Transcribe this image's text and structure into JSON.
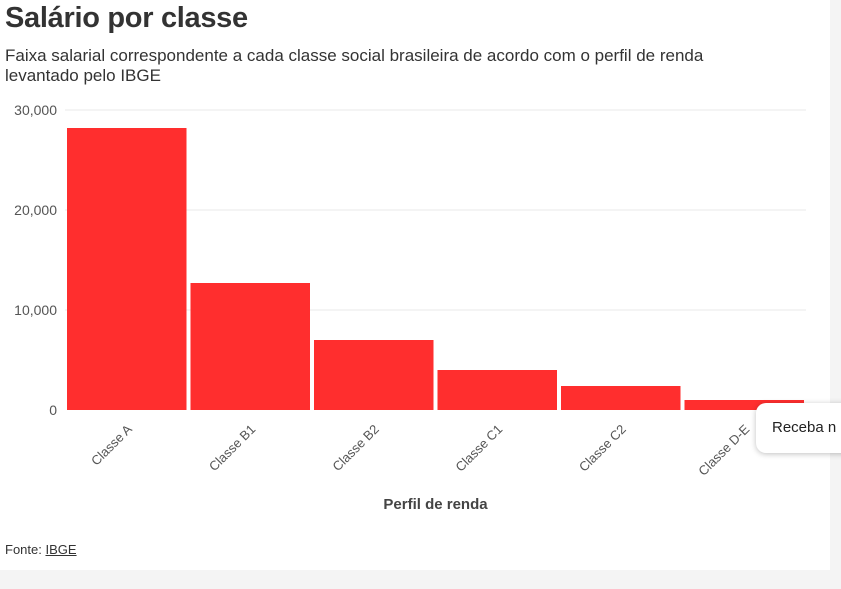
{
  "header": {
    "title": "Salário por classe",
    "subtitle": "Faixa salarial correspondente a cada classe social brasileira de acordo com o perfil de renda levantado pelo IBGE"
  },
  "footer": {
    "source_prefix": "Fonte:",
    "source_link": "IBGE"
  },
  "toast": {
    "text": "Receba n"
  },
  "colors": {
    "bar": "#ff2e2e",
    "grid": "#e8e8e8",
    "card": "#ffffff",
    "page": "#f4f4f4"
  },
  "chart_data": {
    "type": "bar",
    "title": "Salário por classe",
    "subtitle": "Faixa salarial correspondente a cada classe social brasileira de acordo com o perfil de renda levantado pelo IBGE",
    "xlabel": "Perfil de renda",
    "ylabel": "",
    "categories": [
      "Classe A",
      "Classe B1",
      "Classe B2",
      "Classe C1",
      "Classe C2",
      "Classe D-E"
    ],
    "values": [
      28200,
      12700,
      7000,
      4000,
      2400,
      1000
    ],
    "ylim": [
      0,
      30000
    ],
    "yticks": [
      0,
      10000,
      20000,
      30000
    ],
    "ytick_labels": [
      "0",
      "10,000",
      "20,000",
      "30,000"
    ],
    "grid": true,
    "legend": "none"
  }
}
